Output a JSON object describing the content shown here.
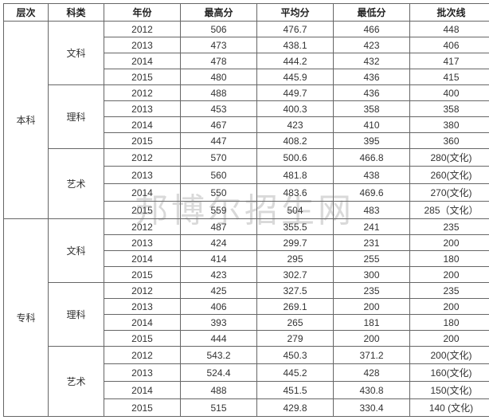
{
  "watermark": "邦博尔招生网",
  "table": {
    "headers": {
      "level": "层次",
      "category": "科类",
      "year": "年份",
      "max": "最高分",
      "avg": "平均分",
      "min": "最低分",
      "cutoff": "批次线"
    },
    "levels": [
      {
        "name": "本科",
        "categories": [
          {
            "name": "文科",
            "rows": [
              {
                "year": "2012",
                "max": "506",
                "avg": "476.7",
                "min": "466",
                "cutoff": "448"
              },
              {
                "year": "2013",
                "max": "473",
                "avg": "438.1",
                "min": "423",
                "cutoff": "406"
              },
              {
                "year": "2014",
                "max": "478",
                "avg": "444.2",
                "min": "432",
                "cutoff": "417"
              },
              {
                "year": "2015",
                "max": "480",
                "avg": "445.9",
                "min": "436",
                "cutoff": "415"
              }
            ]
          },
          {
            "name": "理科",
            "rows": [
              {
                "year": "2012",
                "max": "488",
                "avg": "449.7",
                "min": "436",
                "cutoff": "400"
              },
              {
                "year": "2013",
                "max": "453",
                "avg": "400.3",
                "min": "358",
                "cutoff": "358"
              },
              {
                "year": "2014",
                "max": "467",
                "avg": "423",
                "min": "410",
                "cutoff": "380"
              },
              {
                "year": "2015",
                "max": "447",
                "avg": "408.2",
                "min": "395",
                "cutoff": "360"
              }
            ]
          },
          {
            "name": "艺术",
            "rows": [
              {
                "year": "2012",
                "max": "570",
                "avg": "500.6",
                "min": "466.8",
                "cutoff": "280(文化)"
              },
              {
                "year": "2013",
                "max": "560",
                "avg": "481.8",
                "min": "438",
                "cutoff": "260(文化)"
              },
              {
                "year": "2014",
                "max": "550",
                "avg": "483.6",
                "min": "469.6",
                "cutoff": "270(文化)"
              },
              {
                "year": "2015",
                "max": "559",
                "avg": "504",
                "min": "483",
                "cutoff": "285（文化）"
              }
            ]
          }
        ]
      },
      {
        "name": "专科",
        "categories": [
          {
            "name": "文科",
            "rows": [
              {
                "year": "2012",
                "max": "487",
                "avg": "355.5",
                "min": "241",
                "cutoff": "235"
              },
              {
                "year": "2013",
                "max": "424",
                "avg": "299.7",
                "min": "231",
                "cutoff": "200"
              },
              {
                "year": "2014",
                "max": "414",
                "avg": "295",
                "min": "255",
                "cutoff": "180"
              },
              {
                "year": "2015",
                "max": "423",
                "avg": "302.7",
                "min": "300",
                "cutoff": "200"
              }
            ]
          },
          {
            "name": "理科",
            "rows": [
              {
                "year": "2012",
                "max": "425",
                "avg": "327.5",
                "min": "235",
                "cutoff": "235"
              },
              {
                "year": "2013",
                "max": "406",
                "avg": "269.1",
                "min": "200",
                "cutoff": "200"
              },
              {
                "year": "2014",
                "max": "393",
                "avg": "265",
                "min": "181",
                "cutoff": "180"
              },
              {
                "year": "2015",
                "max": "444",
                "avg": "279",
                "min": "200",
                "cutoff": "200"
              }
            ]
          },
          {
            "name": "艺术",
            "rows": [
              {
                "year": "2012",
                "max": "543.2",
                "avg": "450.3",
                "min": "371.2",
                "cutoff": "200(文化)"
              },
              {
                "year": "2013",
                "max": "524.4",
                "avg": "445.2",
                "min": "428",
                "cutoff": "160(文化)"
              },
              {
                "year": "2014",
                "max": "488",
                "avg": "451.5",
                "min": "430.8",
                "cutoff": "150(文化)"
              },
              {
                "year": "2015",
                "max": "515",
                "avg": "429.8",
                "min": "330.4",
                "cutoff": "140 (文化)"
              }
            ]
          }
        ]
      }
    ]
  }
}
